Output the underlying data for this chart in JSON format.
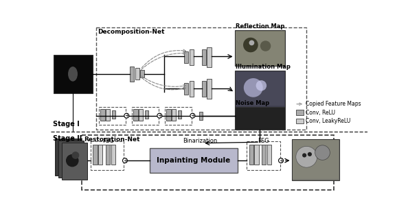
{
  "bg_color": "#ffffff",
  "fig_w": 5.94,
  "fig_h": 3.15,
  "stage1_label": "Stage I",
  "stage2_label": "Stage II",
  "decomp_net_label": "Decomposition-Net",
  "restor_net_label": "Restoration-Net",
  "reflection_label": "Reflection Map",
  "illumination_label": "Illumination Map",
  "noise_label": "Noise Map",
  "binarization_label": "Binarization",
  "inpainting_label": "Inpainting Module",
  "feg_label": "FEG",
  "legend_copied": "Copied Feature Maps",
  "legend_conv_relu": "Conv, ReLU",
  "legend_conv_leaky": "Conv, LeakyReLU",
  "c_dark": "#111111",
  "c_mid": "#888888",
  "c_light": "#cccccc",
  "c_conv1": "#aaaaaa",
  "c_conv2": "#cccccc",
  "c_noise": "#2a2a2a",
  "c_inpaint": "#b0b0c8",
  "c_box": "#555555",
  "c_img_reflection": "#888877",
  "c_img_illumination": "#667788",
  "c_img_output": "#778866"
}
